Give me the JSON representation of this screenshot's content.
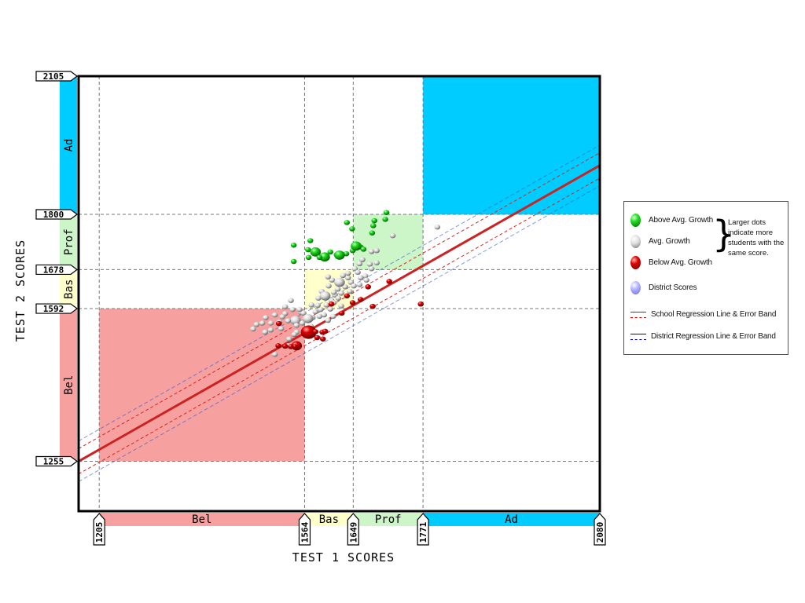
{
  "chart_data": {
    "type": "scatter",
    "xlabel": "TEST 1 SCORES",
    "ylabel": "TEST 2 SCORES",
    "xlim": [
      1169,
      2080
    ],
    "ylim": [
      1145,
      2105
    ],
    "x_ticks": [
      "1205",
      "1564",
      "1649",
      "1771",
      "2080"
    ],
    "y_ticks": [
      "2105",
      "1800",
      "1678",
      "1592",
      "1255"
    ],
    "x_bands": [
      {
        "label": "Bel",
        "from": 1205,
        "to": 1564,
        "color": "#f7a0a0"
      },
      {
        "label": "Bas",
        "from": 1564,
        "to": 1649,
        "color": "#ffffcc"
      },
      {
        "label": "Prof",
        "from": 1649,
        "to": 1771,
        "color": "#ccf5c8"
      },
      {
        "label": "Ad",
        "from": 1771,
        "to": 2080,
        "color": "#00ccff"
      }
    ],
    "y_bands": [
      {
        "label": "Bel",
        "from": 1255,
        "to": 1592,
        "color": "#f7a0a0"
      },
      {
        "label": "Bas",
        "from": 1592,
        "to": 1678,
        "color": "#ffffcc"
      },
      {
        "label": "Prof",
        "from": 1678,
        "to": 1800,
        "color": "#ccf5c8"
      },
      {
        "label": "Ad",
        "from": 1800,
        "to": 2105,
        "color": "#00ccff"
      }
    ],
    "regions": [
      {
        "name": "below-basic-region",
        "x": [
          1205,
          1564
        ],
        "y": [
          1255,
          1592
        ],
        "color": "#f7a0a0"
      },
      {
        "name": "basic-region",
        "x": [
          1564,
          1649
        ],
        "y": [
          1592,
          1678
        ],
        "color": "#ffffcc"
      },
      {
        "name": "proficient-region",
        "x": [
          1649,
          1771
        ],
        "y": [
          1678,
          1800
        ],
        "color": "#ccf5c8"
      },
      {
        "name": "advanced-region",
        "x": [
          1771,
          2080
        ],
        "y": [
          1800,
          2105
        ],
        "color": "#00ccff"
      }
    ],
    "regression": {
      "school": {
        "x": [
          1169,
          2080
        ],
        "y": [
          1255,
          1908
        ],
        "band": 28
      }
    },
    "series": [
      {
        "name": "Above Avg. Growth",
        "color": "#00cc00",
        "points": [
          [
            1707,
            1804,
            1
          ],
          [
            1705,
            1789,
            1
          ],
          [
            1686,
            1786,
            1
          ],
          [
            1684,
            1775,
            1
          ],
          [
            1638,
            1782,
            1
          ],
          [
            1682,
            1759,
            1
          ],
          [
            1647,
            1768,
            1
          ],
          [
            1574,
            1742,
            1
          ],
          [
            1570,
            1722,
            1
          ],
          [
            1583,
            1717,
            2
          ],
          [
            1599,
            1706,
            2
          ],
          [
            1620,
            1711,
            1
          ],
          [
            1637,
            1713,
            1
          ],
          [
            1648,
            1720,
            1
          ],
          [
            1662,
            1728,
            1
          ],
          [
            1667,
            1723,
            1
          ],
          [
            1571,
            1705,
            1
          ],
          [
            1545,
            1732,
            1
          ],
          [
            1545,
            1696,
            1
          ],
          [
            1590,
            1705,
            1
          ],
          [
            1609,
            1717,
            1
          ],
          [
            1625,
            1710,
            2
          ],
          [
            1654,
            1730,
            2
          ]
        ]
      },
      {
        "name": "Avg. Growth",
        "color": "#d8d8d8",
        "points": [
          [
            1548,
            1566,
            2
          ],
          [
            1543,
            1590,
            1
          ],
          [
            1557,
            1584,
            1
          ],
          [
            1530,
            1581,
            1
          ],
          [
            1535,
            1565,
            1
          ],
          [
            1520,
            1562,
            1
          ],
          [
            1525,
            1574,
            1
          ],
          [
            1550,
            1555,
            1
          ],
          [
            1565,
            1570,
            1
          ],
          [
            1578,
            1572,
            1
          ],
          [
            1583,
            1585,
            1
          ],
          [
            1592,
            1590,
            1
          ],
          [
            1598,
            1578,
            1
          ],
          [
            1602,
            1600,
            1
          ],
          [
            1611,
            1610,
            1
          ],
          [
            1609,
            1591,
            1
          ],
          [
            1617,
            1622,
            1
          ],
          [
            1623,
            1615,
            1
          ],
          [
            1615,
            1605,
            1
          ],
          [
            1635,
            1640,
            1
          ],
          [
            1628,
            1626,
            1
          ],
          [
            1640,
            1660,
            1
          ],
          [
            1645,
            1650,
            1
          ],
          [
            1652,
            1680,
            1
          ],
          [
            1657,
            1672,
            1
          ],
          [
            1660,
            1691,
            1
          ],
          [
            1665,
            1700,
            1
          ],
          [
            1678,
            1690,
            1
          ],
          [
            1681,
            1680,
            1
          ],
          [
            1690,
            1693,
            1
          ],
          [
            1681,
            1718,
            1
          ],
          [
            1670,
            1664,
            1
          ],
          [
            1660,
            1645,
            1
          ],
          [
            1643,
            1630,
            1
          ],
          [
            1622,
            1635,
            1
          ],
          [
            1612,
            1655,
            1
          ],
          [
            1606,
            1642,
            1
          ],
          [
            1594,
            1630,
            1
          ],
          [
            1588,
            1615,
            1
          ],
          [
            1576,
            1600,
            1
          ],
          [
            1562,
            1582,
            1
          ],
          [
            1555,
            1590,
            1
          ],
          [
            1540,
            1610,
            1
          ],
          [
            1530,
            1596,
            1
          ],
          [
            1512,
            1578,
            1
          ],
          [
            1505,
            1560,
            1
          ],
          [
            1496,
            1572,
            1
          ],
          [
            1490,
            1560,
            1
          ],
          [
            1480,
            1557,
            1
          ],
          [
            1474,
            1547,
            1
          ],
          [
            1505,
            1545,
            1
          ],
          [
            1523,
            1548,
            1
          ],
          [
            1537,
            1525,
            1
          ],
          [
            1550,
            1540,
            1
          ],
          [
            1560,
            1560,
            1
          ],
          [
            1575,
            1553,
            1
          ],
          [
            1590,
            1575,
            1
          ],
          [
            1600,
            1620,
            2
          ],
          [
            1625,
            1650,
            2
          ],
          [
            1640,
            1670,
            1
          ],
          [
            1570,
            1570,
            2
          ],
          [
            1546,
            1535,
            1
          ],
          [
            1512,
            1491,
            1
          ],
          [
            1495,
            1540,
            1
          ],
          [
            1535,
            1510,
            1
          ],
          [
            1615,
            1628,
            1
          ],
          [
            1587,
            1599,
            1
          ],
          [
            1605,
            1662,
            1
          ],
          [
            1631,
            1665,
            1
          ],
          [
            1650,
            1642,
            1
          ],
          [
            1662,
            1660,
            1
          ],
          [
            1672,
            1655,
            1
          ],
          [
            1614,
            1575,
            1
          ],
          [
            1605,
            1566,
            1
          ],
          [
            1628,
            1598,
            1
          ],
          [
            1690,
            1720,
            1
          ],
          [
            1718,
            1753,
            1
          ],
          [
            1796,
            1772,
            1
          ]
        ]
      },
      {
        "name": "Below Avg. Growth",
        "color": "#dd0000",
        "points": [
          [
            1571,
            1540,
            3
          ],
          [
            1550,
            1510,
            2
          ],
          [
            1547,
            1508,
            1
          ],
          [
            1540,
            1508,
            1
          ],
          [
            1530,
            1509,
            1
          ],
          [
            1518,
            1510,
            1
          ],
          [
            1595,
            1540,
            1
          ],
          [
            1596,
            1525,
            1
          ],
          [
            1583,
            1541,
            1
          ],
          [
            1586,
            1528,
            1
          ],
          [
            1600,
            1542,
            1
          ],
          [
            1638,
            1620,
            1
          ],
          [
            1648,
            1605,
            1
          ],
          [
            1712,
            1652,
            1
          ],
          [
            1675,
            1640,
            1
          ],
          [
            1767,
            1602,
            1
          ],
          [
            1683,
            1597,
            1
          ],
          [
            1662,
            1612,
            1
          ],
          [
            1611,
            1602,
            1
          ],
          [
            1629,
            1582,
            1
          ],
          [
            1519,
            1559,
            1
          ]
        ]
      }
    ],
    "legend": {
      "items": [
        {
          "label": "Above Avg. Growth",
          "color": "#00cc00"
        },
        {
          "label": "Avg. Growth",
          "color": "#dddddd"
        },
        {
          "label": "Below Avg. Growth",
          "color": "#dd0000"
        },
        {
          "label": "District Scores",
          "color": "#a8a8f0"
        }
      ],
      "note": "Larger dots indicate more students with the same score.",
      "lines": [
        {
          "label": "School Regression Line & Error Band",
          "color": "#dd0000"
        },
        {
          "label": "District Regression Line & Error Band",
          "color": "#0000cc"
        }
      ]
    }
  }
}
